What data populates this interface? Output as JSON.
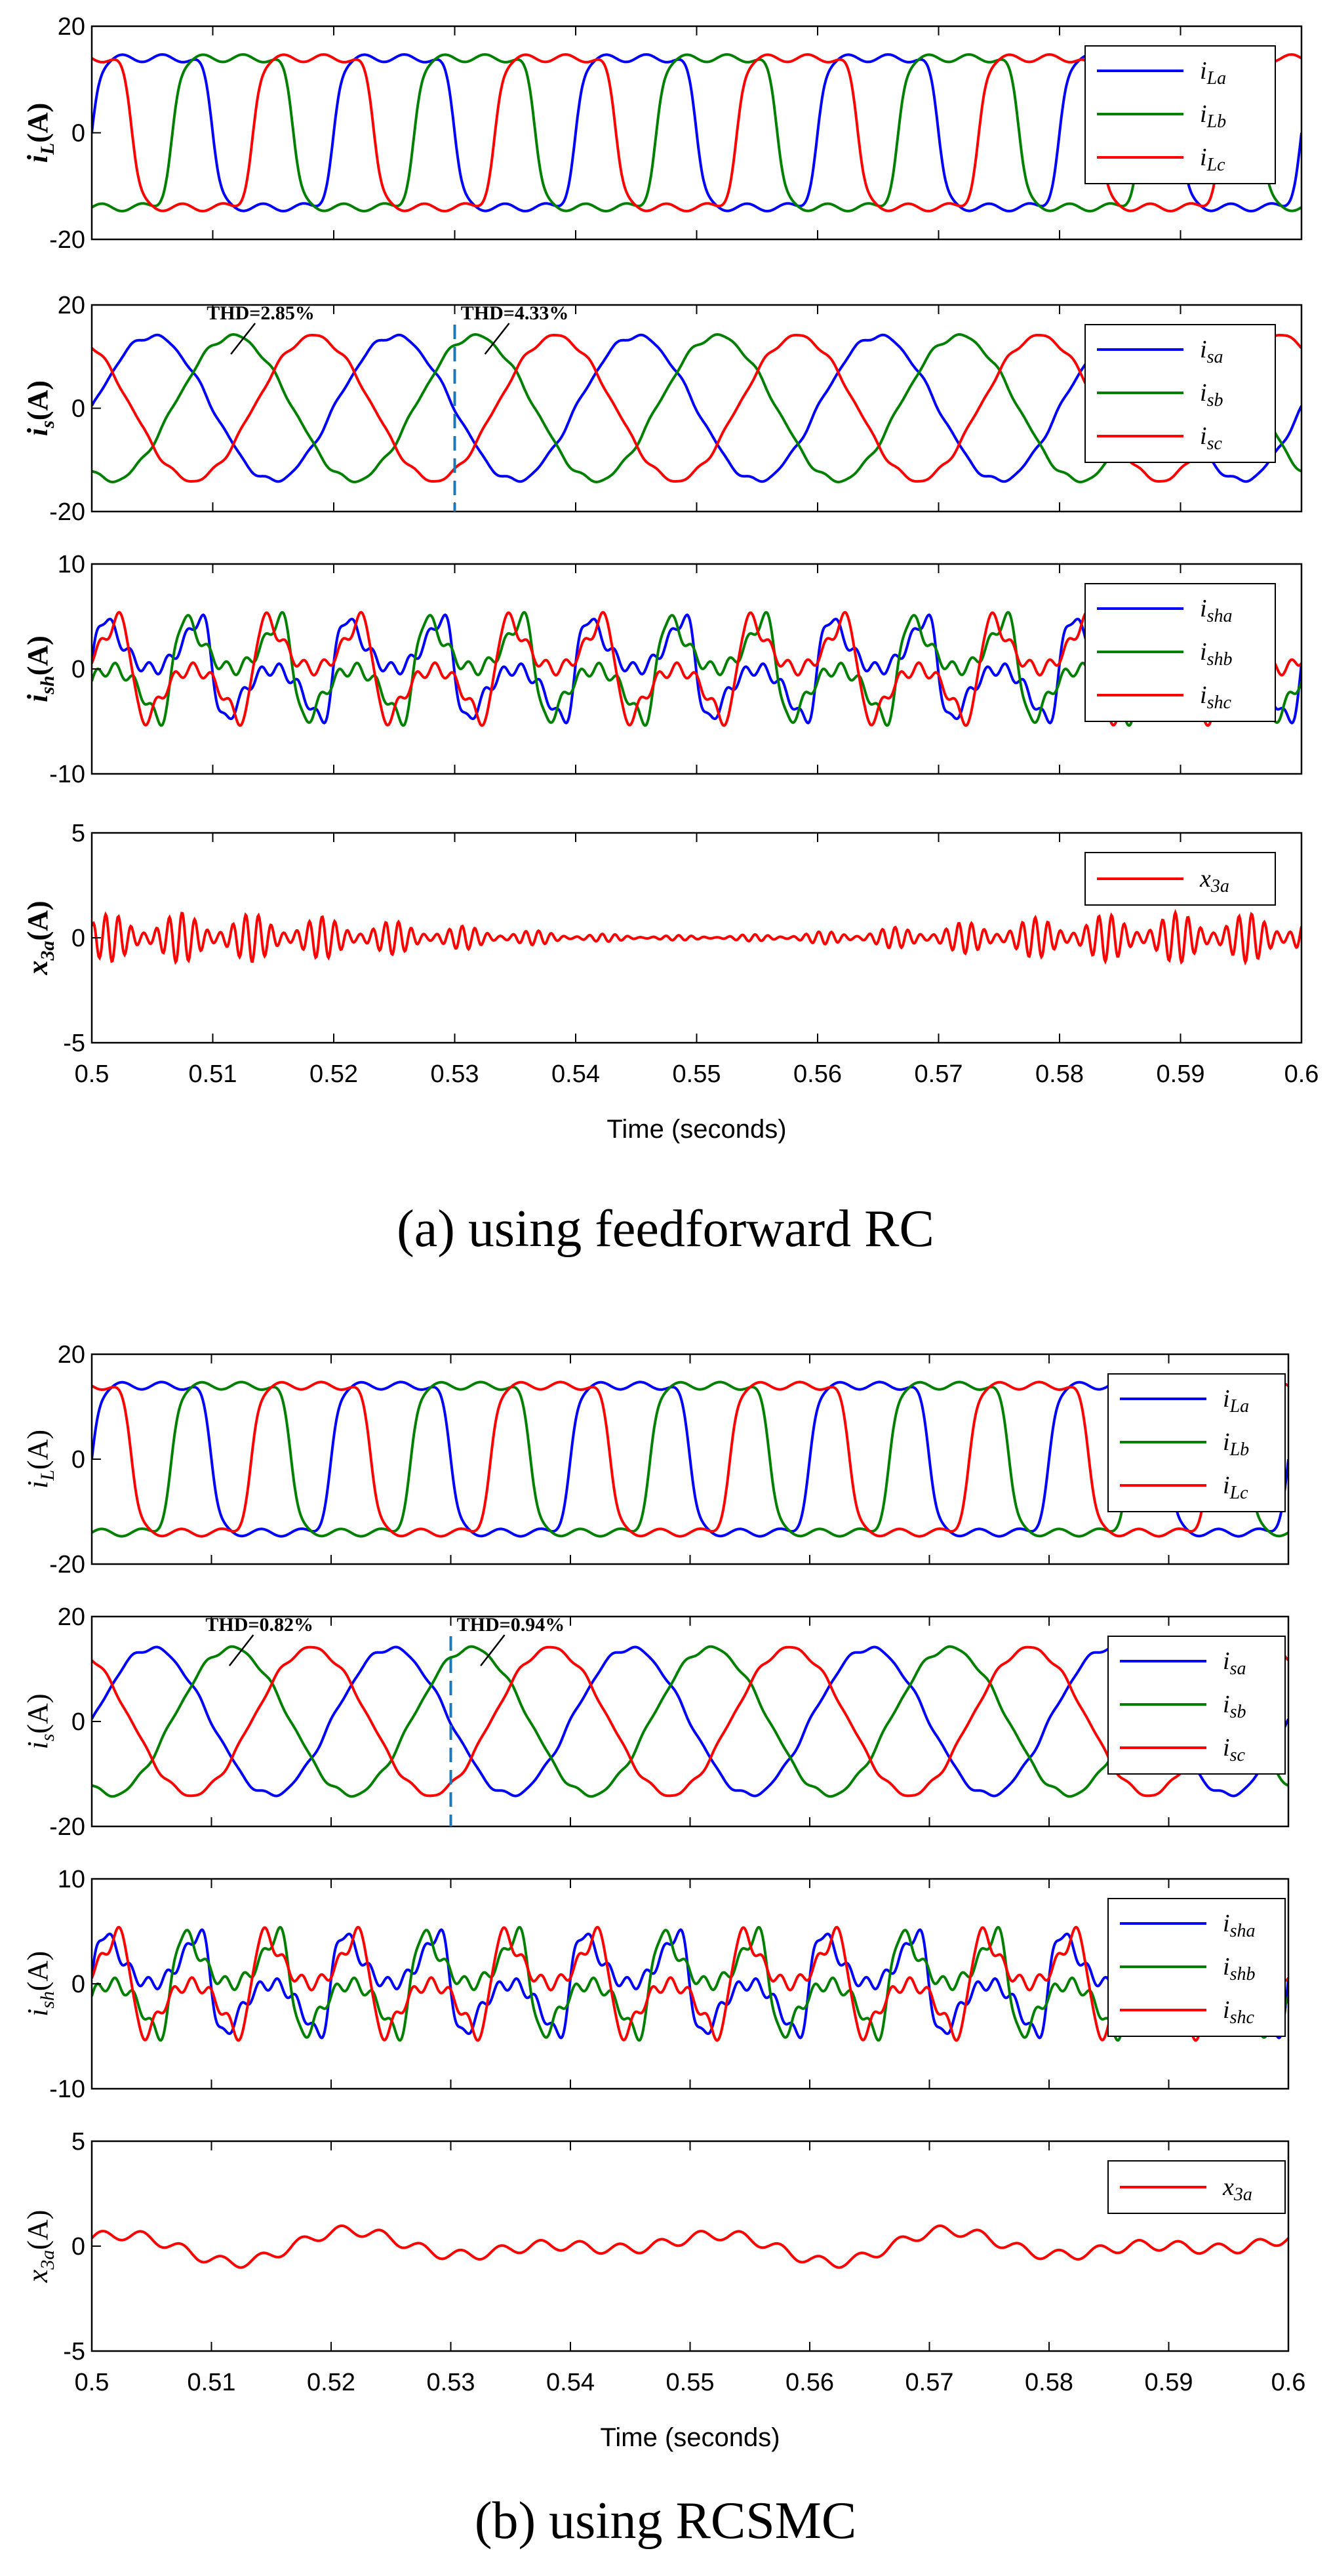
{
  "chart_data": [
    {
      "type": "line",
      "figure": "a",
      "caption": "(a) using feedforward RC",
      "xlabel": "Time (seconds)",
      "xlim": [
        0.5,
        0.6
      ],
      "xticks": [
        "0.5",
        "0.51",
        "0.52",
        "0.53",
        "0.54",
        "0.55",
        "0.56",
        "0.57",
        "0.58",
        "0.59",
        "0.6"
      ],
      "panels": [
        {
          "id": "a-load",
          "ylabel": "i_L(A)",
          "ylabel_main": "i",
          "ylabel_sub": "L",
          "ylabel_unit": "(A)",
          "ylim": [
            -20,
            20
          ],
          "yticks": [
            "20",
            "0",
            "-20"
          ],
          "waveform": "load",
          "series": [
            {
              "name": "i_La",
              "sym": "i",
              "sub": "La",
              "color": "#0000ff",
              "amplitude": 14,
              "phase_deg": 0
            },
            {
              "name": "i_Lb",
              "sym": "i",
              "sub": "Lb",
              "color": "#008000",
              "amplitude": 14,
              "phase_deg": -120
            },
            {
              "name": "i_Lc",
              "sym": "i",
              "sub": "Lc",
              "color": "#ff0000",
              "amplitude": 14,
              "phase_deg": 120
            }
          ]
        },
        {
          "id": "a-source",
          "ylabel": "i_s(A)",
          "ylabel_main": "i",
          "ylabel_sub": "s",
          "ylabel_unit": "(A)",
          "ylim": [
            -20,
            20
          ],
          "yticks": [
            "20",
            "0",
            "-20"
          ],
          "waveform": "sine",
          "annotations": [
            "THD=2.85%",
            "THD=4.33%"
          ],
          "switch_time": 0.53,
          "series": [
            {
              "name": "i_sa",
              "sym": "i",
              "sub": "sa",
              "color": "#0000ff",
              "amplitude": 14,
              "phase_deg": 0
            },
            {
              "name": "i_sb",
              "sym": "i",
              "sub": "sb",
              "color": "#008000",
              "amplitude": 14,
              "phase_deg": -120
            },
            {
              "name": "i_sc",
              "sym": "i",
              "sub": "sc",
              "color": "#ff0000",
              "amplitude": 14,
              "phase_deg": 120
            }
          ]
        },
        {
          "id": "a-shunt",
          "ylabel": "i_sh(A)",
          "ylabel_main": "i",
          "ylabel_sub": "sh",
          "ylabel_unit": "(A)",
          "ylim": [
            -10,
            10
          ],
          "yticks": [
            "10",
            "0",
            "-10"
          ],
          "waveform": "comp",
          "series": [
            {
              "name": "i_sha",
              "sym": "i",
              "sub": "sha",
              "color": "#0000ff",
              "amplitude": 5,
              "phase_deg": 0
            },
            {
              "name": "i_shb",
              "sym": "i",
              "sub": "shb",
              "color": "#008000",
              "amplitude": 5,
              "phase_deg": -120
            },
            {
              "name": "i_shc",
              "sym": "i",
              "sub": "shc",
              "color": "#ff0000",
              "amplitude": 5,
              "phase_deg": 120
            }
          ]
        },
        {
          "id": "a-x3a",
          "ylabel": "x_3a(A)",
          "ylabel_main": "x",
          "ylabel_sub": "3a",
          "ylabel_unit": "(A)",
          "ylim": [
            -5,
            5
          ],
          "yticks": [
            "5",
            "0",
            "-5"
          ],
          "waveform": "noise",
          "series": [
            {
              "name": "x_3a",
              "sym": "x",
              "sub": "3a",
              "color": "#ff0000",
              "amplitude": 1.2,
              "phase_deg": 0
            }
          ]
        }
      ]
    },
    {
      "type": "line",
      "figure": "b",
      "caption": "(b) using RCSMC",
      "xlabel": "Time (seconds)",
      "xlim": [
        0.5,
        0.6
      ],
      "xticks": [
        "0.5",
        "0.51",
        "0.52",
        "0.53",
        "0.54",
        "0.55",
        "0.56",
        "0.57",
        "0.58",
        "0.59",
        "0.6"
      ],
      "panels": [
        {
          "id": "b-load",
          "ylabel": "i_L(A)",
          "ylabel_main": "i",
          "ylabel_sub": "L",
          "ylabel_unit": "(A)",
          "ylim": [
            -20,
            20
          ],
          "yticks": [
            "20",
            "0",
            "-20"
          ],
          "waveform": "load",
          "series": [
            {
              "name": "i_La",
              "sym": "i",
              "sub": "La",
              "color": "#0000ff",
              "amplitude": 14,
              "phase_deg": 0
            },
            {
              "name": "i_Lb",
              "sym": "i",
              "sub": "Lb",
              "color": "#008000",
              "amplitude": 14,
              "phase_deg": -120
            },
            {
              "name": "i_Lc",
              "sym": "i",
              "sub": "Lc",
              "color": "#ff0000",
              "amplitude": 14,
              "phase_deg": 120
            }
          ]
        },
        {
          "id": "b-source",
          "ylabel": "i_s(A)",
          "ylabel_main": "i",
          "ylabel_sub": "s",
          "ylabel_unit": "(A)",
          "ylim": [
            -20,
            20
          ],
          "yticks": [
            "20",
            "0",
            "-20"
          ],
          "waveform": "sine",
          "annotations": [
            "THD=0.82%",
            "THD=0.94%"
          ],
          "switch_time": 0.53,
          "series": [
            {
              "name": "i_sa",
              "sym": "i",
              "sub": "sa",
              "color": "#0000ff",
              "amplitude": 14,
              "phase_deg": 0
            },
            {
              "name": "i_sb",
              "sym": "i",
              "sub": "sb",
              "color": "#008000",
              "amplitude": 14,
              "phase_deg": -120
            },
            {
              "name": "i_sc",
              "sym": "i",
              "sub": "sc",
              "color": "#ff0000",
              "amplitude": 14,
              "phase_deg": 120
            }
          ]
        },
        {
          "id": "b-shunt",
          "ylabel": "i_sh(A)",
          "ylabel_main": "i",
          "ylabel_sub": "sh",
          "ylabel_unit": "(A)",
          "ylim": [
            -10,
            10
          ],
          "yticks": [
            "10",
            "0",
            "-10"
          ],
          "waveform": "comp",
          "series": [
            {
              "name": "i_sha",
              "sym": "i",
              "sub": "sha",
              "color": "#0000ff",
              "amplitude": 5,
              "phase_deg": 0
            },
            {
              "name": "i_shb",
              "sym": "i",
              "sub": "shb",
              "color": "#008000",
              "amplitude": 5,
              "phase_deg": -120
            },
            {
              "name": "i_shc",
              "sym": "i",
              "sub": "shc",
              "color": "#ff0000",
              "amplitude": 5,
              "phase_deg": 120
            }
          ]
        },
        {
          "id": "b-x3a",
          "ylabel": "x_3a(A)",
          "ylabel_main": "x",
          "ylabel_sub": "3a",
          "ylabel_unit": "(A)",
          "ylim": [
            -5,
            5
          ],
          "yticks": [
            "5",
            "0",
            "-5"
          ],
          "waveform": "smooth",
          "series": [
            {
              "name": "x_3a",
              "sym": "x",
              "sub": "3a",
              "color": "#ff0000",
              "amplitude": 1.0,
              "phase_deg": 0
            }
          ]
        }
      ]
    }
  ]
}
